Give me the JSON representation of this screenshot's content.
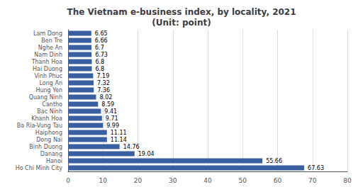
{
  "chart_data": {
    "type": "bar",
    "orientation": "horizontal",
    "title": "The Vietnam e-business index, by locality, 2021\n(Unit: point)",
    "categories": [
      "Lam Dong",
      "Ben Tre",
      "Nghe An",
      "Nam Dinh",
      "Thanh Hoa",
      "Hai Duong",
      "Vinh Phuc",
      "Long An",
      "Hung Yen",
      "Quang Ninh",
      "Cantho",
      "Bac Ninh",
      "Khanh Hoa",
      "Ba Ria-Vung Tau",
      "Haiphong",
      "Dong Nai",
      "Binh Duong",
      "Danang",
      "Hanoi",
      "Ho Chi Minh City"
    ],
    "values": [
      6.65,
      6.66,
      6.7,
      6.73,
      6.8,
      6.8,
      7.19,
      7.32,
      7.36,
      8.02,
      8.59,
      9.41,
      9.71,
      9.99,
      11.11,
      11.14,
      14.76,
      19.04,
      55.66,
      67.63
    ],
    "color": "#3a5fa0",
    "xlim": [
      0,
      80
    ],
    "xticks": [
      0,
      10,
      20,
      30,
      40,
      50,
      60,
      70,
      80
    ],
    "grid": true,
    "data_labels": true
  }
}
